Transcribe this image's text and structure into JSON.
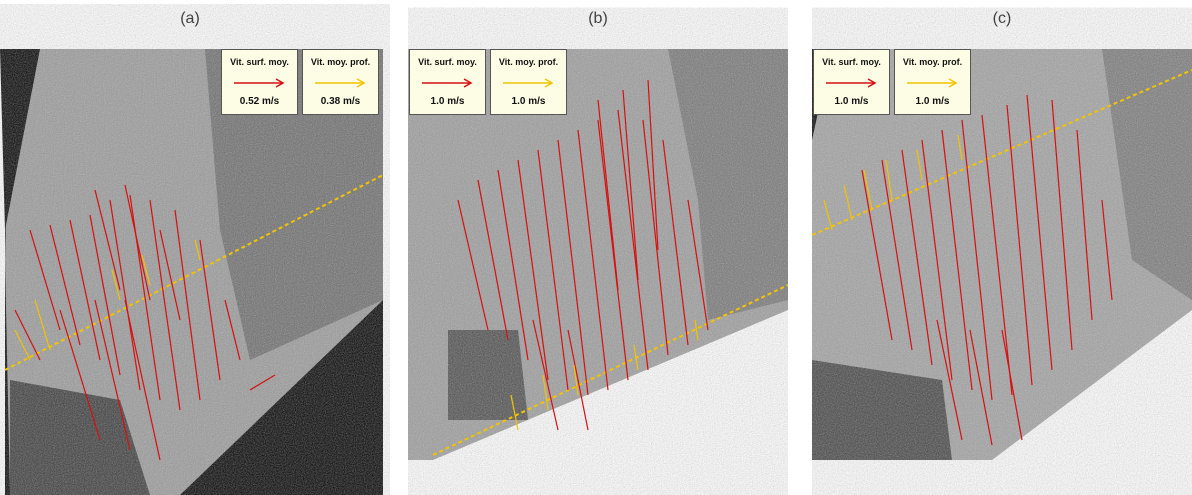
{
  "panels": [
    {
      "label": "(a)",
      "legend": {
        "surface_title": "Vit. surf. moy.",
        "surface_value": "0.52 m/s",
        "depth_title": "Vit. moy. prof.",
        "depth_value": "0.38 m/s"
      }
    },
    {
      "label": "(b)",
      "legend": {
        "surface_title": "Vit. surf. moy.",
        "surface_value": "1.0 m/s",
        "depth_title": "Vit. moy. prof.",
        "depth_value": "1.0 m/s"
      }
    },
    {
      "label": "(c)",
      "legend": {
        "surface_title": "Vit. surf. moy.",
        "surface_value": "1.0 m/s",
        "depth_title": "Vit. moy. prof.",
        "depth_value": "1.0 m/s"
      }
    }
  ],
  "colors": {
    "surface_arrow": "#d61010",
    "depth_arrow": "#f2c300"
  }
}
